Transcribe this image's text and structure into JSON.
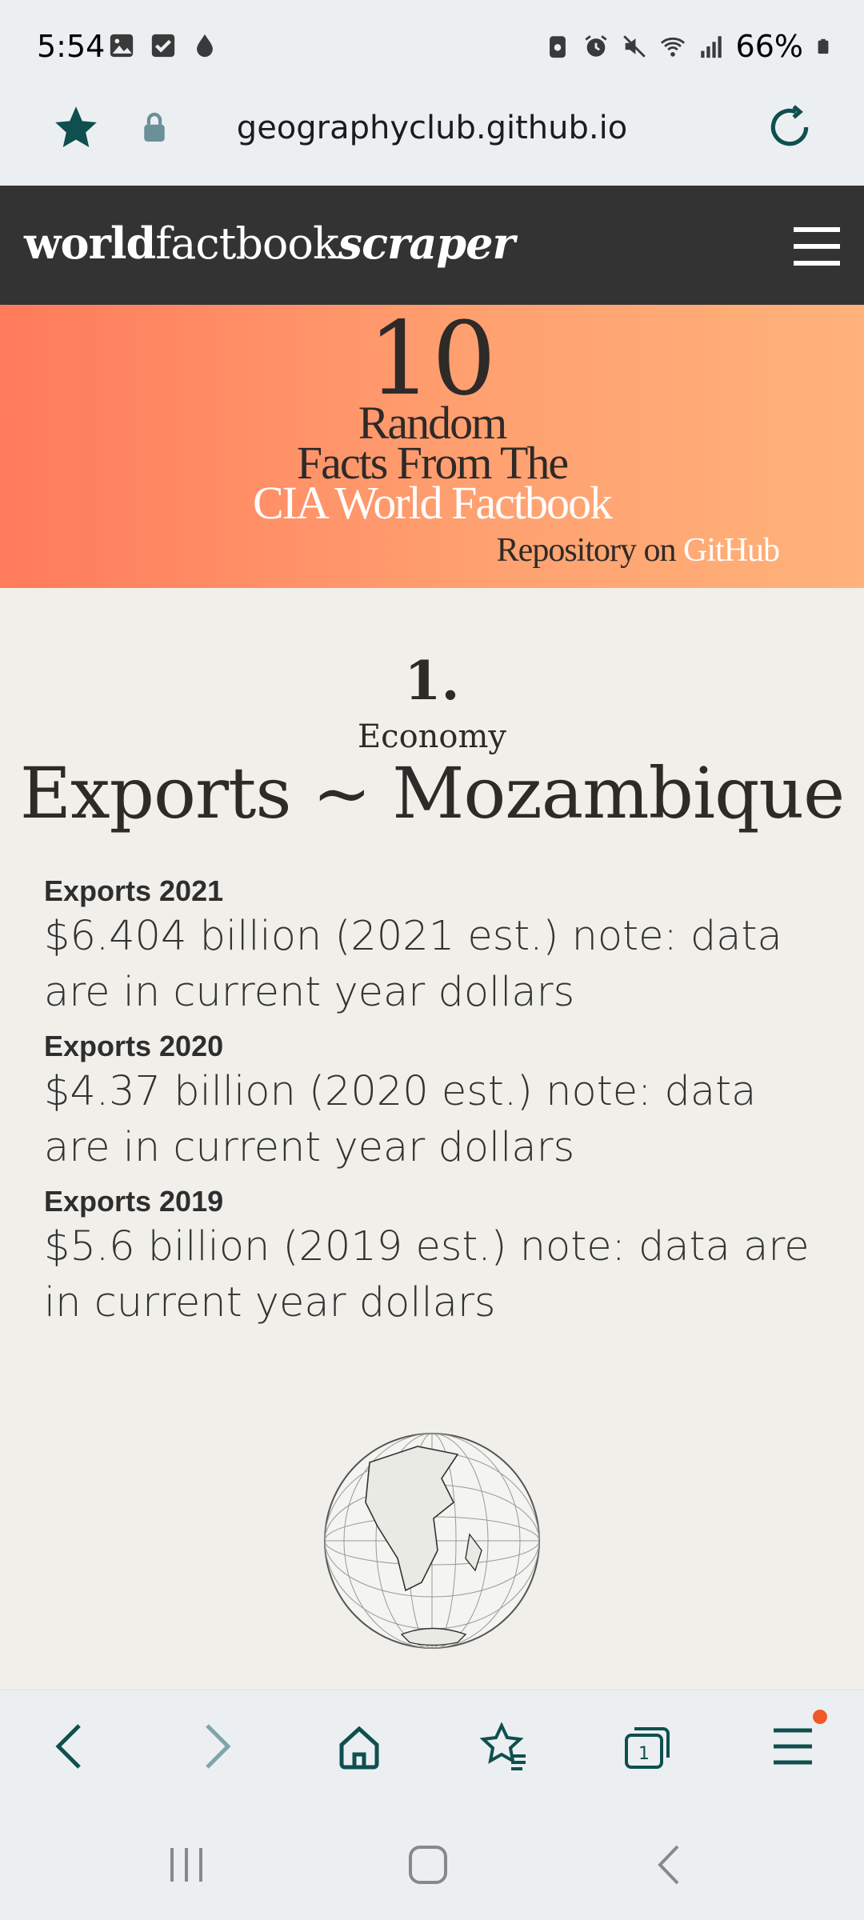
{
  "status_bar": {
    "time": "5:54",
    "battery": "66%",
    "left_icons": [
      "gallery-icon",
      "checkbox-icon",
      "drop-icon"
    ],
    "right_icons": [
      "battery-saver-icon",
      "alarm-icon",
      "mute-icon",
      "wifi-icon",
      "signal-icon",
      "battery-icon"
    ]
  },
  "browser": {
    "url": "geographyclub.github.io",
    "accent_color": "#0f4f4f"
  },
  "site": {
    "logo": {
      "part1": "world",
      "part2": "factbook",
      "part3": "scraper"
    },
    "banner": {
      "number": "10",
      "line1": "Random",
      "line2": "Facts From The",
      "line3": "CIA World Factbook",
      "repo_text": "Repository on ",
      "repo_link": "GitHub"
    }
  },
  "fact": {
    "number": "1.",
    "category": "Economy",
    "title": "Exports ~ Mozambique",
    "entries": [
      {
        "label": "Exports 2021",
        "value": "$6.404 billion (2021 est.) note: data are in current year dollars"
      },
      {
        "label": "Exports 2020",
        "value": "$4.37 billion (2020 est.) note: data are in current year dollars"
      },
      {
        "label": "Exports 2019",
        "value": "$5.6 billion (2019 est.) note: data are in current year dollars"
      }
    ]
  },
  "bottom_nav": [
    "back-icon",
    "forward-icon",
    "home-icon",
    "bookmarks-icon",
    "tabs-icon",
    "menu-icon"
  ],
  "tabs_count": "1"
}
